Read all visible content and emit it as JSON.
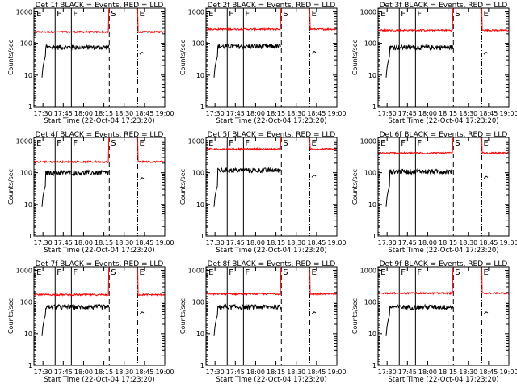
{
  "chart_data": [
    {
      "type": "line",
      "title": "Det 1f BLACK = Events, RED = LLD",
      "xlabel": "Start Time (22-Oct-04 17:23:20)",
      "ylabel": "Counts/sec",
      "red_level": 230,
      "black_level": 75
    },
    {
      "type": "line",
      "title": "Det 2f BLACK = Events, RED = LLD",
      "xlabel": "Start Time (22-Oct-04 17:23:20)",
      "ylabel": "Counts/sec",
      "red_level": 280,
      "black_level": 80
    },
    {
      "type": "line",
      "title": "Det 3f BLACK = Events, RED = LLD",
      "xlabel": "Start Time (22-Oct-04 17:23:20)",
      "ylabel": "Counts/sec",
      "red_level": 260,
      "black_level": 75
    },
    {
      "type": "line",
      "title": "Det 4f BLACK = Events, RED = LLD",
      "xlabel": "Start Time (22-Oct-04 17:23:20)",
      "ylabel": "Counts/sec",
      "red_level": 220,
      "black_level": 100
    },
    {
      "type": "line",
      "title": "Det 5f BLACK = Events, RED = LLD",
      "xlabel": "Start Time (22-Oct-04 17:23:20)",
      "ylabel": "Counts/sec",
      "red_level": 560,
      "black_level": 120
    },
    {
      "type": "line",
      "title": "Det 6f BLACK = Events, RED = LLD",
      "xlabel": "Start Time (22-Oct-04 17:23:20)",
      "ylabel": "Counts/sec",
      "red_level": 420,
      "black_level": 110
    },
    {
      "type": "line",
      "title": "Det 7f BLACK = Events, RED = LLD",
      "xlabel": "Start Time (22-Oct-04 17:23:20)",
      "ylabel": "Counts/sec",
      "red_level": 170,
      "black_level": 70
    },
    {
      "type": "line",
      "title": "Det 8f BLACK = Events, RED = LLD",
      "xlabel": "Start Time (22-Oct-04 17:23:20)",
      "ylabel": "Counts/sec",
      "red_level": 180,
      "black_level": 70
    },
    {
      "type": "line",
      "title": "Det 9f BLACK = Events, RED = LLD",
      "xlabel": "Start Time (22-Oct-04 17:23:20)",
      "ylabel": "Counts/sec",
      "red_level": 190,
      "black_level": 70
    }
  ],
  "common": {
    "x_ticks": [
      "17:30",
      "17:45",
      "18:00",
      "18:15",
      "18:30",
      "18:45",
      "19:00"
    ],
    "y_ticks": [
      "1",
      "10",
      "100",
      "1000"
    ],
    "y_scale": "log",
    "ylim": [
      1,
      1300
    ],
    "xlim": [
      "17:23:20",
      "19:00:00"
    ],
    "markers": [
      {
        "label": "E",
        "time": "17:24"
      },
      {
        "label": "F",
        "time": "17:39"
      },
      {
        "label": "F",
        "time": "17:51"
      },
      {
        "label": "S",
        "time": "18:19"
      },
      {
        "label": "E",
        "time": "18:40"
      }
    ],
    "colors": {
      "events": "#000000",
      "lld": "#ff0000"
    }
  }
}
